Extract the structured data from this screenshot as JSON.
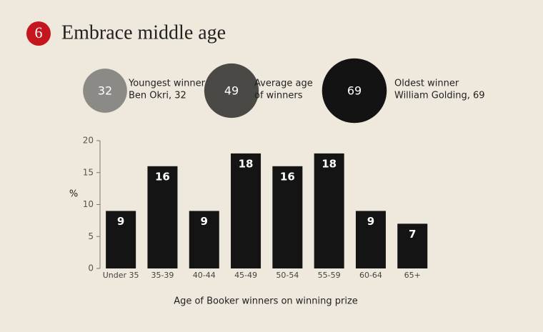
{
  "badge": "6",
  "title": "Embrace middle age",
  "stats": [
    {
      "value": 32,
      "color": "#8b8a86",
      "lines": [
        "Youngest winner",
        "Ben Okri, 32"
      ]
    },
    {
      "value": 49,
      "color": "#4a4946",
      "lines": [
        "Average age",
        "of winners"
      ]
    },
    {
      "value": 69,
      "color": "#131313",
      "lines": [
        "Oldest winner",
        "William Golding, 69"
      ]
    }
  ],
  "chart_data": {
    "type": "bar",
    "y_label": "%",
    "x_label": "Age of Booker winners on winning prize",
    "categories": [
      "Under 35",
      "35-39",
      "40-44",
      "45-49",
      "50-54",
      "55-59",
      "60-64",
      "65+"
    ],
    "values": [
      9,
      16,
      9,
      18,
      16,
      18,
      9,
      7
    ],
    "color": "#141414",
    "ylim": [
      0,
      20
    ],
    "yticks": [
      0,
      5,
      10,
      15,
      20
    ]
  }
}
